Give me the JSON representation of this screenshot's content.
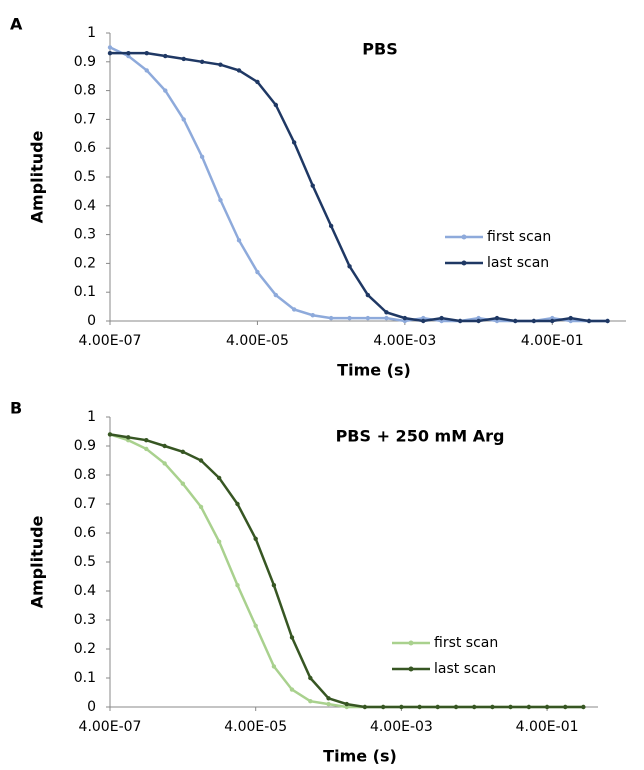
{
  "chart_data": [
    {
      "type": "line",
      "panel": "A",
      "title": "PBS",
      "xlabel": "Time (s)",
      "ylabel": "Amplitude",
      "xscale": "log",
      "legend_position": "center-right",
      "xlim": [
        4e-07,
        4
      ],
      "ylim": [
        0,
        1
      ],
      "xticks": [
        {
          "value": 4e-07,
          "label": "4.00E-07"
        },
        {
          "value": 4e-05,
          "label": "4.00E-05"
        },
        {
          "value": 0.004,
          "label": "4.00E-03"
        },
        {
          "value": 0.4,
          "label": "4.00E-01"
        }
      ],
      "yticks": [
        0,
        0.1,
        0.2,
        0.3,
        0.4,
        0.5,
        0.6,
        0.7,
        0.8,
        0.9,
        1
      ],
      "x": [
        4e-07,
        7.11e-07,
        1.26e-06,
        2.25e-06,
        4e-06,
        7.11e-06,
        1.26e-05,
        2.25e-05,
        4e-05,
        7.11e-05,
        0.000126,
        0.000225,
        0.0004,
        0.000711,
        0.00126,
        0.00225,
        0.004,
        0.00711,
        0.0126,
        0.0225,
        0.04,
        0.0711,
        0.126,
        0.225,
        0.4,
        0.711,
        1.26,
        2.25
      ],
      "series": [
        {
          "name": "first scan",
          "color": "#8eaadb",
          "values": [
            0.95,
            0.92,
            0.87,
            0.8,
            0.7,
            0.57,
            0.42,
            0.28,
            0.17,
            0.09,
            0.04,
            0.02,
            0.01,
            0.01,
            0.01,
            0.01,
            0,
            0.01,
            0,
            0,
            0.01,
            0,
            0,
            0,
            0.01,
            0,
            0,
            0
          ]
        },
        {
          "name": "last scan",
          "color": "#1f3864",
          "values": [
            0.93,
            0.93,
            0.93,
            0.92,
            0.91,
            0.9,
            0.89,
            0.87,
            0.83,
            0.75,
            0.62,
            0.47,
            0.33,
            0.19,
            0.09,
            0.03,
            0.01,
            0,
            0.01,
            0,
            0,
            0.01,
            0,
            0,
            0,
            0.01,
            0,
            0
          ]
        }
      ]
    },
    {
      "type": "line",
      "panel": "B",
      "title": "PBS + 250 mM Arg",
      "xlabel": "Time (s)",
      "ylabel": "Amplitude",
      "xscale": "log",
      "legend_position": "center-right",
      "xlim": [
        4e-07,
        2
      ],
      "ylim": [
        0,
        1
      ],
      "xticks": [
        {
          "value": 4e-07,
          "label": "4.00E-07"
        },
        {
          "value": 4e-05,
          "label": "4.00E-05"
        },
        {
          "value": 0.004,
          "label": "4.00E-03"
        },
        {
          "value": 0.4,
          "label": "4.00E-01"
        }
      ],
      "yticks": [
        0,
        0.1,
        0.2,
        0.3,
        0.4,
        0.5,
        0.6,
        0.7,
        0.8,
        0.9,
        1
      ],
      "x": [
        4e-07,
        7.11e-07,
        1.26e-06,
        2.25e-06,
        4e-06,
        7.11e-06,
        1.26e-05,
        2.25e-05,
        4e-05,
        7.11e-05,
        0.000126,
        0.000225,
        0.0004,
        0.000711,
        0.00126,
        0.00225,
        0.004,
        0.00711,
        0.0126,
        0.0225,
        0.04,
        0.0711,
        0.126,
        0.225,
        0.4,
        0.711,
        1.26
      ],
      "series": [
        {
          "name": "first scan",
          "color": "#a9d18e",
          "values": [
            0.94,
            0.92,
            0.89,
            0.84,
            0.77,
            0.69,
            0.57,
            0.42,
            0.28,
            0.14,
            0.06,
            0.02,
            0.01,
            0,
            0,
            0,
            0,
            0,
            0,
            0,
            0,
            0,
            0,
            0,
            0,
            0,
            0
          ]
        },
        {
          "name": "last scan",
          "color": "#375623",
          "values": [
            0.94,
            0.93,
            0.92,
            0.9,
            0.88,
            0.85,
            0.79,
            0.7,
            0.58,
            0.42,
            0.24,
            0.1,
            0.03,
            0.01,
            0,
            0,
            0,
            0,
            0,
            0,
            0,
            0,
            0,
            0,
            0,
            0,
            0
          ]
        }
      ]
    }
  ]
}
